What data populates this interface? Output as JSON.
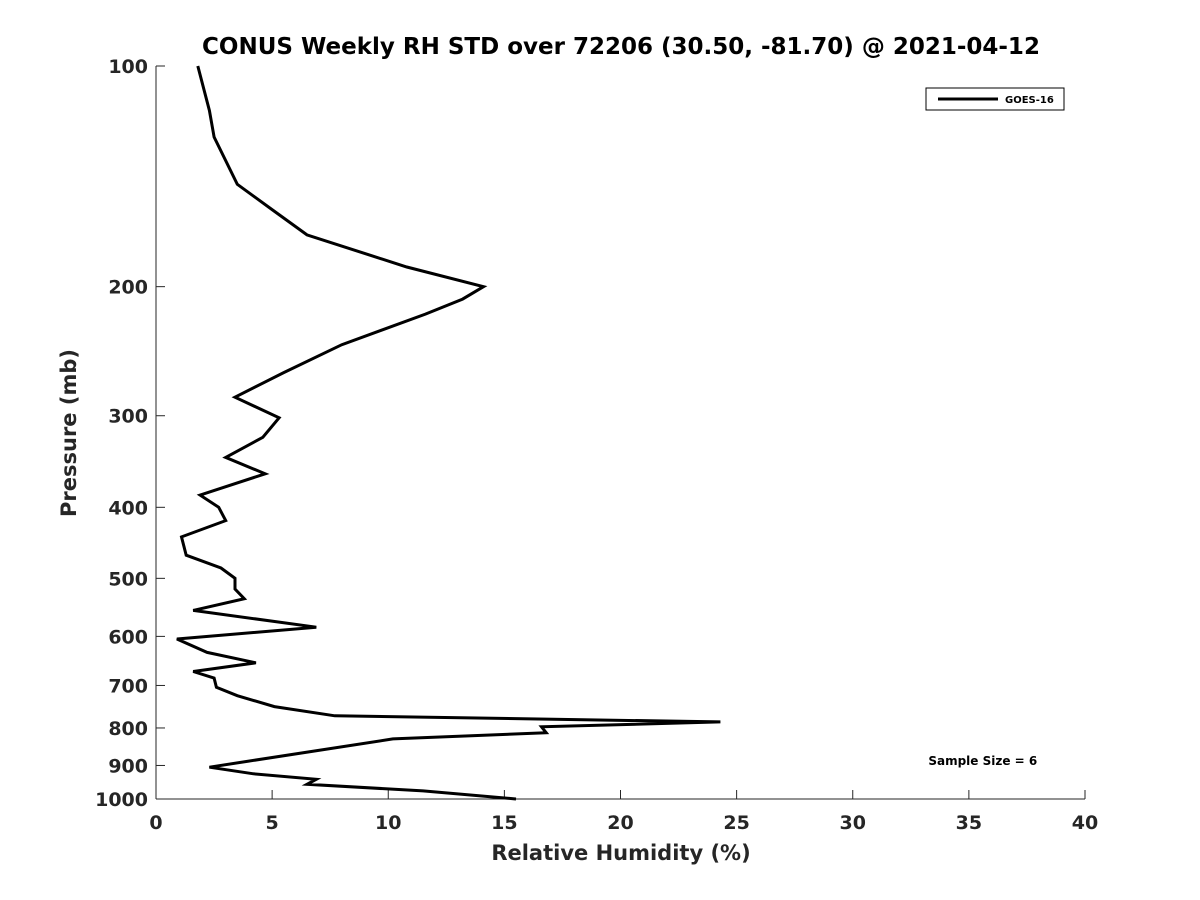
{
  "chart_data": {
    "type": "line",
    "title": "CONUS Weekly RH STD over 72206 (30.50, -81.70) @ 2021-04-12",
    "xlabel": "Relative Humidity (%)",
    "ylabel": "Pressure (mb)",
    "xlim": [
      0,
      40
    ],
    "ylim": [
      100,
      1000
    ],
    "y_scale": "log",
    "y_reversed": true,
    "grid": false,
    "legend_position": "top-right",
    "xticks": [
      0,
      5,
      10,
      15,
      20,
      25,
      30,
      35,
      40
    ],
    "yticks": [
      100,
      200,
      300,
      400,
      500,
      600,
      700,
      800,
      900,
      1000
    ],
    "series": [
      {
        "name": "GOES-16",
        "color": "#000000",
        "points": [
          [
            1.8,
            100
          ],
          [
            2.3,
            115
          ],
          [
            2.5,
            125
          ],
          [
            3.5,
            145
          ],
          [
            5.0,
            157
          ],
          [
            6.5,
            170
          ],
          [
            10.8,
            188
          ],
          [
            14.1,
            200
          ],
          [
            13.2,
            208
          ],
          [
            11.6,
            218
          ],
          [
            8.0,
            240
          ],
          [
            5.5,
            262
          ],
          [
            3.4,
            283
          ],
          [
            5.3,
            302
          ],
          [
            4.6,
            321
          ],
          [
            3.0,
            342
          ],
          [
            4.7,
            360
          ],
          [
            1.9,
            385
          ],
          [
            2.7,
            400
          ],
          [
            3.0,
            417
          ],
          [
            1.1,
            439
          ],
          [
            1.3,
            465
          ],
          [
            2.8,
            484
          ],
          [
            3.4,
            500
          ],
          [
            3.4,
            517
          ],
          [
            3.8,
            533
          ],
          [
            1.6,
            553
          ],
          [
            6.9,
            583
          ],
          [
            0.9,
            605
          ],
          [
            2.2,
            631
          ],
          [
            4.3,
            652
          ],
          [
            1.6,
            670
          ],
          [
            2.5,
            684
          ],
          [
            2.6,
            704
          ],
          [
            3.5,
            723
          ],
          [
            5.1,
            748
          ],
          [
            7.7,
            770
          ],
          [
            24.3,
            785
          ],
          [
            16.6,
            797
          ],
          [
            16.8,
            812
          ],
          [
            10.2,
            828
          ],
          [
            2.3,
            905
          ],
          [
            4.2,
            924
          ],
          [
            6.9,
            940
          ],
          [
            6.5,
            955
          ],
          [
            11.5,
            975
          ],
          [
            15.5,
            1000
          ]
        ]
      }
    ],
    "annotations": [
      {
        "text": "Sample Size = 6",
        "x": 35.6,
        "y": 905
      }
    ]
  }
}
